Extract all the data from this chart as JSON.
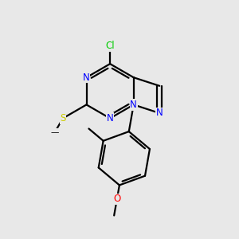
{
  "background_color": "#e8e8e8",
  "bond_color": "#000000",
  "atom_colors": {
    "N": "#0000ff",
    "Cl": "#00cc00",
    "S": "#cccc00",
    "O": "#ff0000",
    "C": "#000000"
  },
  "lw": 1.6,
  "fs": 8.5
}
